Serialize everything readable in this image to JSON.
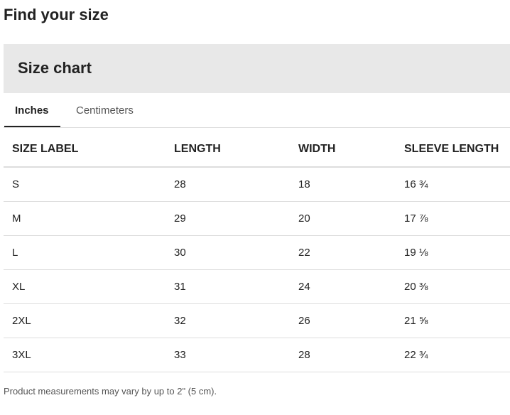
{
  "header": {
    "title": "Find your size"
  },
  "size_chart": {
    "heading": "Size chart",
    "tabs": [
      "Inches",
      "Centimeters"
    ],
    "table": {
      "columns": [
        "SIZE LABEL",
        "LENGTH",
        "WIDTH",
        "SLEEVE LENGTH"
      ],
      "rows": [
        [
          "S",
          "28",
          "18",
          "16 ¾"
        ],
        [
          "M",
          "29",
          "20",
          "17 ⅞"
        ],
        [
          "L",
          "30",
          "22",
          "19 ⅛"
        ],
        [
          "XL",
          "31",
          "24",
          "20 ⅜"
        ],
        [
          "2XL",
          "32",
          "26",
          "21 ⅝"
        ],
        [
          "3XL",
          "33",
          "28",
          "22 ¾"
        ]
      ]
    },
    "note": "Product measurements may vary by up to 2\" (5 cm)."
  }
}
